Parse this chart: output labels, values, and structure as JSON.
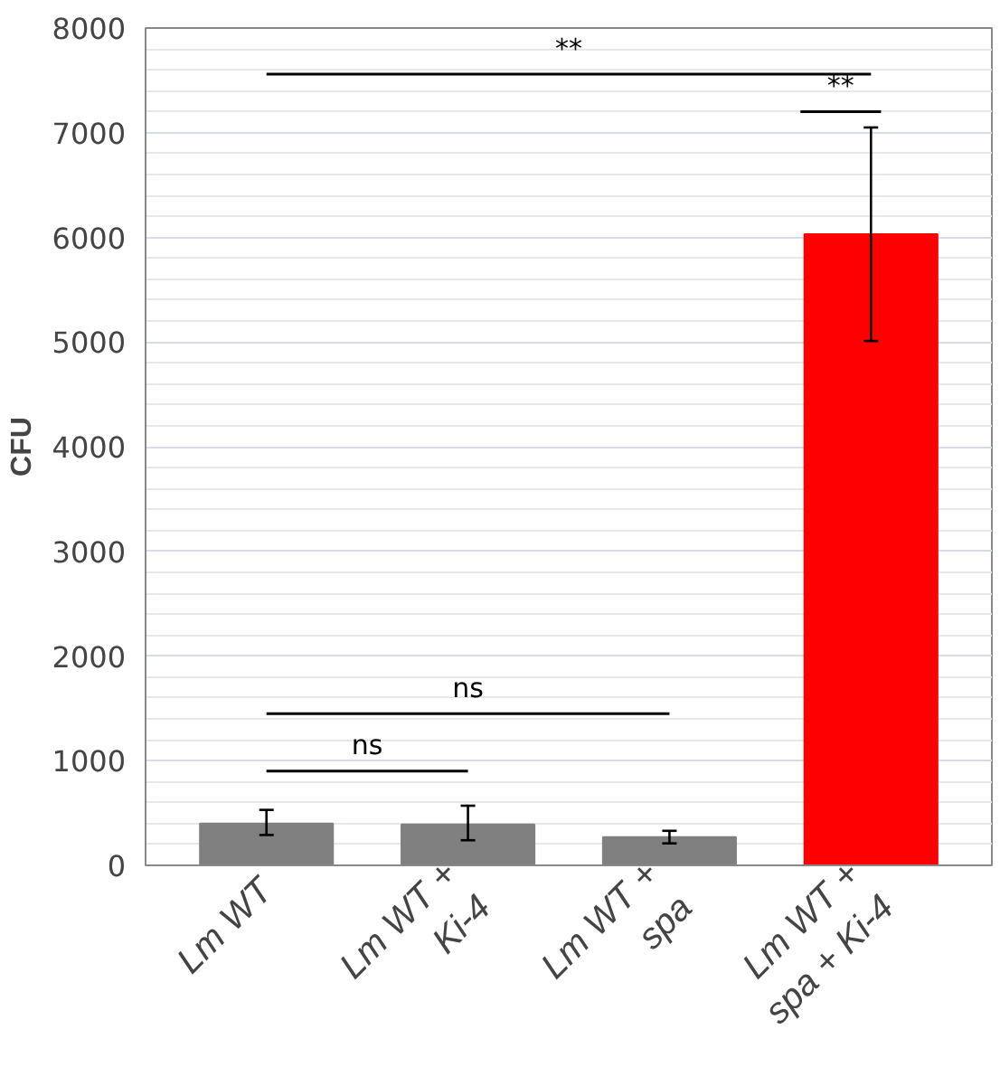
{
  "chart_data": {
    "type": "bar",
    "ylabel": "CFU",
    "categories": [
      "Lm WT",
      "Lm WT +\nKi-4",
      "Lm WT +\nspa",
      "Lm WT +\nspa + Ki-4"
    ],
    "values": [
      400,
      390,
      270,
      6030
    ],
    "colors": [
      "#808080",
      "#808080",
      "#808080",
      "#ff0000"
    ],
    "errors": [
      [
        290,
        530
      ],
      [
        240,
        570
      ],
      [
        210,
        330
      ],
      [
        5010,
        7050
      ]
    ],
    "ylim": [
      0,
      8000
    ],
    "yticks": [
      0,
      1000,
      2000,
      3000,
      4000,
      5000,
      6000,
      7000,
      8000
    ],
    "grid": "y",
    "annotations": [
      "**",
      "**",
      "ns",
      "ns"
    ]
  }
}
